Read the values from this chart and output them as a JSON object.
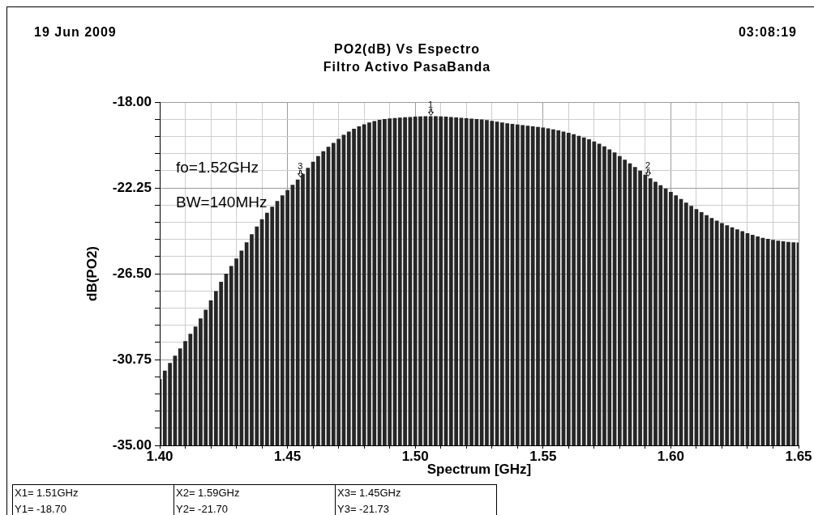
{
  "chart_data": {
    "type": "bar",
    "title": "PO2(dB) Vs Espectro",
    "subtitle": "Filtro Activo PasaBanda",
    "xlabel": "Spectrum [GHz]",
    "ylabel": "dB(PO2)",
    "x": [
      1.4,
      1.402,
      1.404,
      1.406,
      1.408,
      1.41,
      1.412,
      1.414,
      1.416,
      1.418,
      1.42,
      1.422,
      1.424,
      1.426,
      1.428,
      1.43,
      1.432,
      1.434,
      1.436,
      1.438,
      1.44,
      1.442,
      1.444,
      1.446,
      1.448,
      1.45,
      1.452,
      1.454,
      1.456,
      1.458,
      1.46,
      1.462,
      1.464,
      1.466,
      1.468,
      1.47,
      1.472,
      1.474,
      1.476,
      1.478,
      1.48,
      1.482,
      1.484,
      1.486,
      1.488,
      1.49,
      1.492,
      1.494,
      1.496,
      1.498,
      1.5,
      1.502,
      1.504,
      1.506,
      1.508,
      1.51,
      1.512,
      1.514,
      1.516,
      1.518,
      1.52,
      1.522,
      1.524,
      1.526,
      1.528,
      1.53,
      1.532,
      1.534,
      1.536,
      1.538,
      1.54,
      1.542,
      1.544,
      1.546,
      1.548,
      1.55,
      1.552,
      1.554,
      1.556,
      1.558,
      1.56,
      1.562,
      1.564,
      1.566,
      1.568,
      1.57,
      1.572,
      1.574,
      1.576,
      1.578,
      1.58,
      1.582,
      1.584,
      1.586,
      1.588,
      1.59,
      1.592,
      1.594,
      1.596,
      1.598,
      1.6,
      1.602,
      1.604,
      1.606,
      1.608,
      1.61,
      1.612,
      1.614,
      1.616,
      1.618,
      1.62,
      1.622,
      1.624,
      1.626,
      1.628,
      1.63,
      1.632,
      1.634,
      1.636,
      1.638,
      1.64,
      1.642,
      1.644,
      1.646,
      1.648,
      1.65
    ],
    "base": [
      -35,
      -35,
      -35,
      -35,
      -35,
      -35,
      -35,
      -35,
      -35,
      -35,
      -35,
      -35,
      -35,
      -35,
      -35,
      -35,
      -35,
      -35,
      -35,
      -35,
      -35,
      -35,
      -35,
      -35,
      -35,
      -35,
      -35,
      -35,
      -35,
      -35,
      -35,
      -35,
      -35,
      -35,
      -35,
      -35,
      -35,
      -35,
      -35,
      -35,
      -35,
      -35,
      -35,
      -35,
      -35,
      -35,
      -35,
      -35,
      -35,
      -35,
      -35,
      -35,
      -35,
      -35,
      -35,
      -35,
      -35,
      -35,
      -35,
      -35,
      -35,
      -35,
      -35,
      -35,
      -35,
      -35,
      -35,
      -35,
      -35,
      -35,
      -35,
      -35,
      -35,
      -35,
      -35,
      -35,
      -35,
      -35,
      -35,
      -35,
      -35,
      -35,
      -35,
      -35,
      -35,
      -35,
      -35,
      -35,
      -35,
      -35,
      -35,
      -35,
      -35,
      -35,
      -35,
      -35,
      -35,
      -35,
      -35,
      -35,
      -35,
      -35,
      -35,
      -35,
      -35,
      -35,
      -35,
      -35,
      -35,
      -35,
      -35,
      -35,
      -35,
      -35,
      -35,
      -35,
      -35,
      -35,
      -35,
      -35,
      -35,
      -35,
      -35,
      -35,
      -35,
      -35
    ],
    "values": [
      3.28,
      3.7,
      4.08,
      4.44,
      4.8,
      5.16,
      5.52,
      5.88,
      6.28,
      6.72,
      7.18,
      7.64,
      8.1,
      8.5,
      8.88,
      9.25,
      9.64,
      10.05,
      10.45,
      10.84,
      11.2,
      11.52,
      11.82,
      12.1,
      12.38,
      12.64,
      12.9,
      13.16,
      13.44,
      13.74,
      14.04,
      14.32,
      14.56,
      14.78,
      14.98,
      15.18,
      15.38,
      15.54,
      15.68,
      15.8,
      15.9,
      15.99,
      16.06,
      16.12,
      16.16,
      16.19,
      16.21,
      16.23,
      16.25,
      16.26,
      16.28,
      16.29,
      16.3,
      16.3,
      16.3,
      16.29,
      16.28,
      16.26,
      16.24,
      16.22,
      16.2,
      16.18,
      16.16,
      16.14,
      16.11,
      16.07,
      16.03,
      15.99,
      15.95,
      15.92,
      15.89,
      15.86,
      15.83,
      15.8,
      15.77,
      15.74,
      15.7,
      15.65,
      15.6,
      15.54,
      15.48,
      15.41,
      15.33,
      15.25,
      15.16,
      15.05,
      14.94,
      14.8,
      14.65,
      14.5,
      14.32,
      14.14,
      13.96,
      13.78,
      13.6,
      13.4,
      13.22,
      13.05,
      12.88,
      12.71,
      12.55,
      12.38,
      12.2,
      12.02,
      11.86,
      11.7,
      11.55,
      11.4,
      11.26,
      11.13,
      11.01,
      10.9,
      10.8,
      10.7,
      10.6,
      10.5,
      10.42,
      10.34,
      10.27,
      10.22,
      10.17,
      10.13,
      10.1,
      10.07,
      10.05,
      10.04
    ],
    "color": "#262626",
    "xlim": [
      1.4,
      1.65
    ],
    "xticks": [
      {
        "value": 1.4,
        "label": "1.40"
      },
      {
        "value": 1.41,
        "label": null
      },
      {
        "value": 1.42,
        "label": null
      },
      {
        "value": 1.43,
        "label": null
      },
      {
        "value": 1.44,
        "label": null
      },
      {
        "value": 1.45,
        "label": "1.45"
      },
      {
        "value": 1.46,
        "label": null
      },
      {
        "value": 1.47,
        "label": null
      },
      {
        "value": 1.48,
        "label": null
      },
      {
        "value": 1.49,
        "label": null
      },
      {
        "value": 1.5,
        "label": "1.50"
      },
      {
        "value": 1.51,
        "label": null
      },
      {
        "value": 1.52,
        "label": null
      },
      {
        "value": 1.53,
        "label": null
      },
      {
        "value": 1.54,
        "label": null
      },
      {
        "value": 1.55,
        "label": "1.55"
      },
      {
        "value": 1.56,
        "label": null
      },
      {
        "value": 1.57,
        "label": null
      },
      {
        "value": 1.58,
        "label": null
      },
      {
        "value": 1.59,
        "label": null
      },
      {
        "value": 1.6,
        "label": "1.60"
      },
      {
        "value": 1.61,
        "label": null
      },
      {
        "value": 1.62,
        "label": null
      },
      {
        "value": 1.63,
        "label": null
      },
      {
        "value": 1.64,
        "label": null
      },
      {
        "value": 1.65,
        "label": "1.65"
      }
    ],
    "ylim": [
      -35,
      -18
    ],
    "yticks": [
      {
        "value": -35,
        "label": "-35.00"
      },
      {
        "value": -34.15,
        "label": null
      },
      {
        "value": -33.3,
        "label": null
      },
      {
        "value": -32.45,
        "label": null
      },
      {
        "value": -31.6,
        "label": null
      },
      {
        "value": -30.75,
        "label": "-30.75"
      },
      {
        "value": -29.9,
        "label": null
      },
      {
        "value": -29.05,
        "label": null
      },
      {
        "value": -28.2,
        "label": null
      },
      {
        "value": -27.35,
        "label": null
      },
      {
        "value": -26.5,
        "label": "-26.50"
      },
      {
        "value": -25.65,
        "label": null
      },
      {
        "value": -24.8,
        "label": null
      },
      {
        "value": -23.95,
        "label": null
      },
      {
        "value": -23.1,
        "label": null
      },
      {
        "value": -22.25,
        "label": "-22.25"
      },
      {
        "value": -21.4,
        "label": null
      },
      {
        "value": -20.55,
        "label": null
      },
      {
        "value": -19.7,
        "label": null
      },
      {
        "value": -18.85,
        "label": null
      },
      {
        "value": -18,
        "label": "-18.00"
      }
    ],
    "grid": true,
    "annotations": [
      "19 Jun 2009",
      "03:08:19",
      "fo=1.52GHz",
      "BW=140MHz",
      {
        "text": "1",
        "x": 1.506,
        "y": -18.7
      },
      {
        "text": "2",
        "x": 1.591,
        "y": -21.7
      },
      {
        "text": "3",
        "x": 1.455,
        "y": -21.73
      },
      "X1= 1.51GHz",
      "X2= 1.59GHz",
      "X3= 1.45GHz",
      "Y1= -18.70",
      "Y2= -21.70",
      "Y3= -21.73"
    ]
  }
}
